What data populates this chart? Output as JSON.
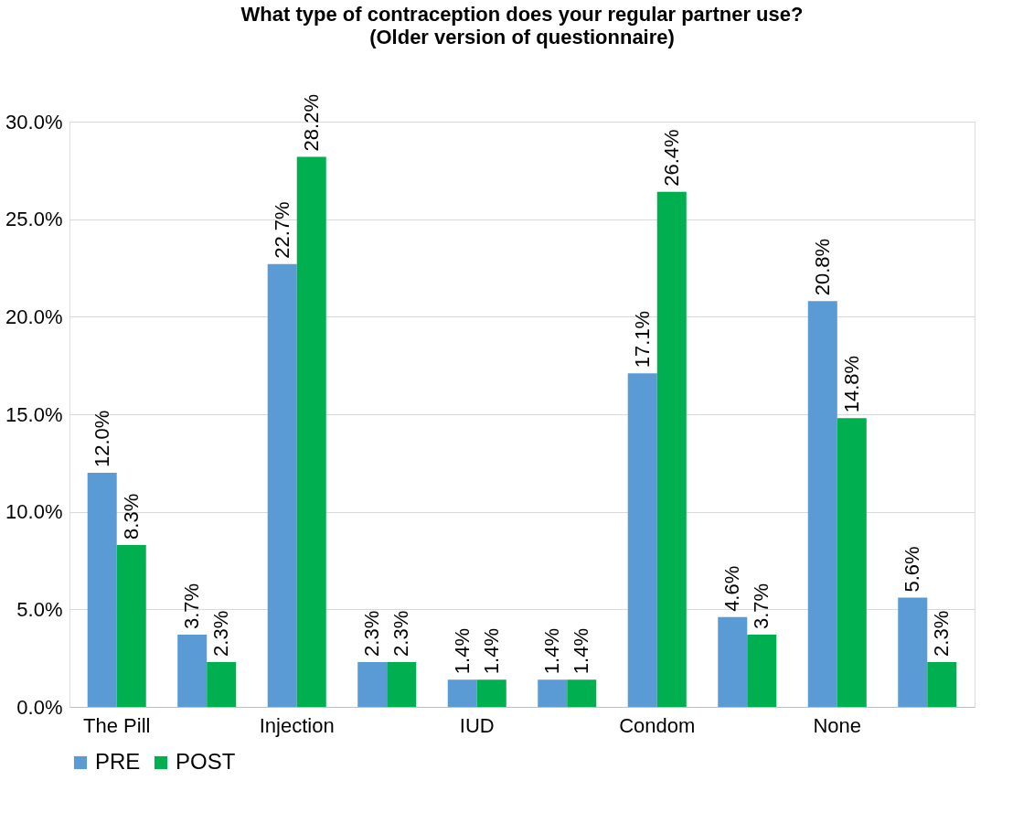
{
  "chart_data": {
    "type": "bar",
    "title": "What type of contraception does your regular partner use?",
    "subtitle": "(Older version of questionnaire)",
    "categories": [
      "The Pill",
      null,
      "Injection",
      null,
      "IUD",
      null,
      "Condom",
      null,
      "None",
      null
    ],
    "series": [
      {
        "name": "PRE",
        "color": "#5b9bd5",
        "values": [
          12.0,
          3.7,
          22.7,
          2.3,
          1.4,
          1.4,
          17.1,
          4.6,
          20.8,
          5.6
        ],
        "value_labels": [
          "12.0%",
          "3.7%",
          "22.7%",
          "2.3%",
          "1.4%",
          "1.4%",
          "17.1%",
          "4.6%",
          "20.8%",
          "5.6%"
        ]
      },
      {
        "name": "POST",
        "color": "#00b050",
        "values": [
          8.3,
          2.3,
          28.2,
          2.3,
          1.4,
          1.4,
          26.4,
          3.7,
          14.8,
          2.3
        ],
        "value_labels": [
          "8.3%",
          "2.3%",
          "28.2%",
          "2.3%",
          "1.4%",
          "1.4%",
          "26.4%",
          "3.7%",
          "14.8%",
          "2.3%"
        ]
      }
    ],
    "ylim": [
      0,
      30
    ],
    "yticks": [
      {
        "value": 0,
        "label": "0.0%"
      },
      {
        "value": 5,
        "label": "5.0%"
      },
      {
        "value": 10,
        "label": "10.0%"
      },
      {
        "value": 15,
        "label": "15.0%"
      },
      {
        "value": 20,
        "label": "20.0%"
      },
      {
        "value": 25,
        "label": "25.0%"
      },
      {
        "value": 30,
        "label": "30.0%"
      }
    ],
    "grid": "y",
    "legend": "bottom"
  }
}
